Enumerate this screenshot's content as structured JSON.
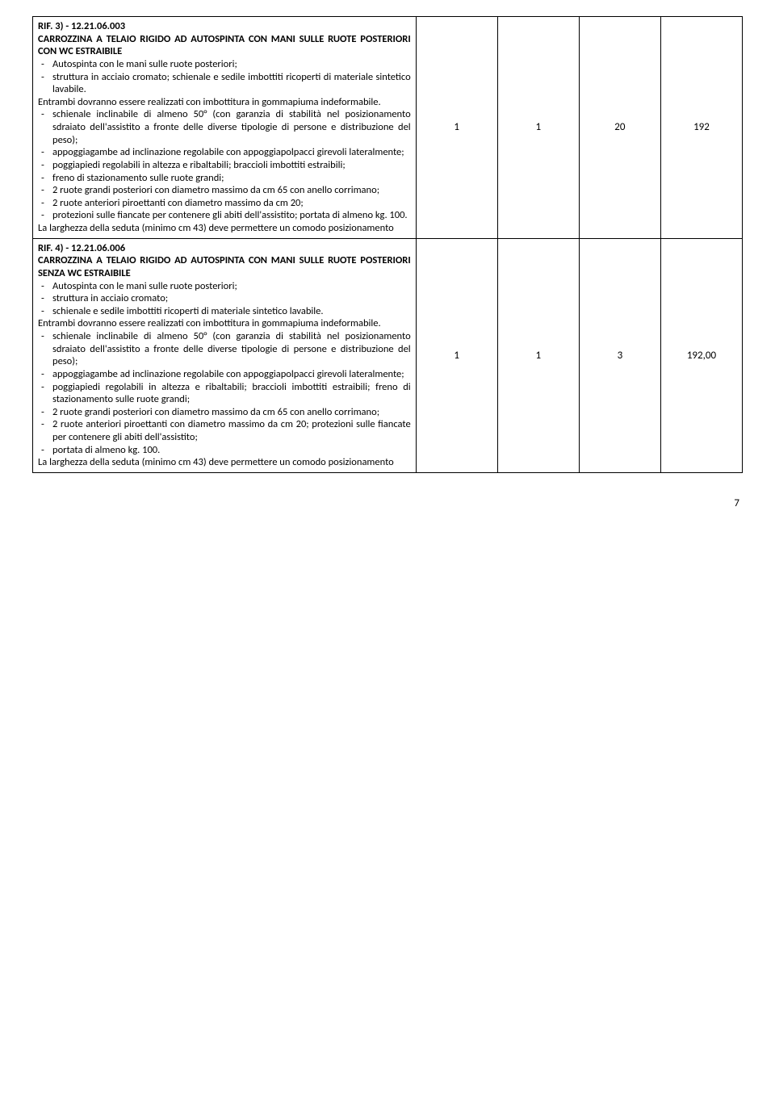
{
  "row1": {
    "ref": "RIF. 3) - 12.21.06.003",
    "title": "CARROZZINA A TELAIO RIGIDO AD AUTOSPINTA CON MANI SULLE RUOTE POSTERIORI CON WC ESTRAIBILE",
    "li1": "Autospinta con le mani sulle ruote posteriori;",
    "li2": "struttura in acciaio cromato; schienale e sedile imbottiti ricoperti di materiale sintetico lavabile.",
    "p1": "Entrambi dovranno essere realizzati con imbottitura in gommapiuma indeformabile.",
    "li3": "schienale inclinabile di almeno 50° (con garanzia di stabilità nel posizionamento sdraiato dell'assistito a fronte delle diverse tipologie di persone e distribuzione del peso);",
    "li4": "appoggiagambe ad inclinazione regolabile con appoggiapolpacci girevoli lateralmente;",
    "li5": "poggiapiedi regolabili in altezza e ribaltabili; braccioli imbottiti estraibili;",
    "li6": "freno di stazionamento sulle ruote grandi;",
    "li7": "2 ruote grandi posteriori con diametro massimo da cm 65 con anello corrimano;",
    "li8": "2 ruote anteriori piroettanti con diametro massimo da cm 20;",
    "li9": "protezioni sulle fiancate per contenere gli abiti dell'assistito; portata di almeno kg. 100.",
    "p2": "La larghezza della seduta (minimo cm 43) deve permettere un comodo posizionamento",
    "c1": "1",
    "c2": "1",
    "c3": "20",
    "c4": "192"
  },
  "row2": {
    "ref": "RIF. 4) - 12.21.06.006",
    "title": "CARROZZINA A TELAIO RIGIDO AD AUTOSPINTA CON MANI SULLE RUOTE POSTERIORI SENZA WC ESTRAIBILE",
    "li1": "Autospinta con le mani sulle ruote posteriori;",
    "li2": "struttura in acciaio cromato;",
    "li3": "schienale e sedile imbottiti ricoperti di materiale sintetico lavabile.",
    "p1": "Entrambi dovranno essere realizzati con imbottitura in gommapiuma indeformabile.",
    "li4": "schienale inclinabile di almeno 50° (con garanzia di stabilità nel posizionamento sdraiato dell'assistito a fronte delle diverse tipologie di persone e distribuzione del peso);",
    "li5": "appoggiagambe ad inclinazione regolabile con appoggiapolpacci girevoli lateralmente;",
    "li6": "poggiapiedi regolabili in altezza e ribaltabili; braccioli imbottiti estraibili; freno di stazionamento sulle ruote grandi;",
    "li7": "2 ruote grandi posteriori con diametro massimo da cm 65 con anello corrimano;",
    "li8": "2 ruote anteriori piroettanti con diametro massimo da cm 20; protezioni sulle fiancate per contenere gli abiti dell'assistito;",
    "li9": "portata di almeno kg. 100.",
    "p2": "La larghezza della seduta (minimo cm 43) deve permettere un comodo posizionamento",
    "c1": "1",
    "c2": "1",
    "c3": "3",
    "c4": "192,00"
  },
  "page": "7"
}
